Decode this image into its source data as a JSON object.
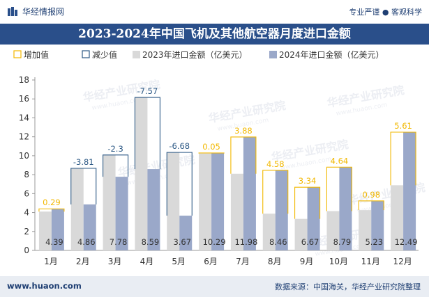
{
  "header": {
    "brand_name": "华经情报网",
    "slogan": "专业严谨 ● 客观科学"
  },
  "footer": {
    "website": "www.huaon.com",
    "source": "数据来源：中国海关，华经产业研究院整理"
  },
  "watermark": "华经产业研究院",
  "watermark_url": "www.huaon.com",
  "colors": {
    "increase": "#f2b800",
    "decrease": "#2e5a86",
    "bar2023": "#d9d9d9",
    "bar2024": "#9aa8c9",
    "title_bg": "#2a4f8a"
  },
  "chart_data": {
    "type": "bar",
    "title": "2023-2024年中国飞机及其他航空器月度进口金额",
    "categories": [
      "1月",
      "2月",
      "3月",
      "4月",
      "5月",
      "6月",
      "7月",
      "8月",
      "9月",
      "10月",
      "11月",
      "12月"
    ],
    "ylim": [
      0,
      18
    ],
    "yticks": [
      0,
      2,
      4,
      6,
      8,
      10,
      12,
      14,
      16,
      18
    ],
    "legend": [
      "增加值",
      "减少值",
      "2023年进口金额（亿美元）",
      "2024年进口金额（亿美元）"
    ],
    "series": [
      {
        "name": "2023年进口金额（亿美元）",
        "values": [
          4.1,
          8.67,
          10.08,
          16.16,
          10.35,
          10.24,
          8.1,
          3.88,
          3.33,
          4.15,
          4.25,
          6.88
        ]
      },
      {
        "name": "2024年进口金额（亿美元）",
        "values": [
          4.39,
          4.86,
          7.78,
          8.59,
          3.67,
          10.29,
          11.98,
          8.46,
          6.67,
          8.79,
          5.23,
          12.49
        ]
      }
    ],
    "changes": [
      "0.29",
      "-3.81",
      "-2.3",
      "-7.57",
      "-6.68",
      "0.05",
      "3.88",
      "4.58",
      "3.34",
      "4.64",
      "0.98",
      "5.61"
    ],
    "value_labels": [
      "4.39",
      "4.86",
      "7.78",
      "8.59",
      "3.67",
      "10.29",
      "11.98",
      "8.46",
      "6.67",
      "8.79",
      "5.23",
      "12.49"
    ]
  }
}
